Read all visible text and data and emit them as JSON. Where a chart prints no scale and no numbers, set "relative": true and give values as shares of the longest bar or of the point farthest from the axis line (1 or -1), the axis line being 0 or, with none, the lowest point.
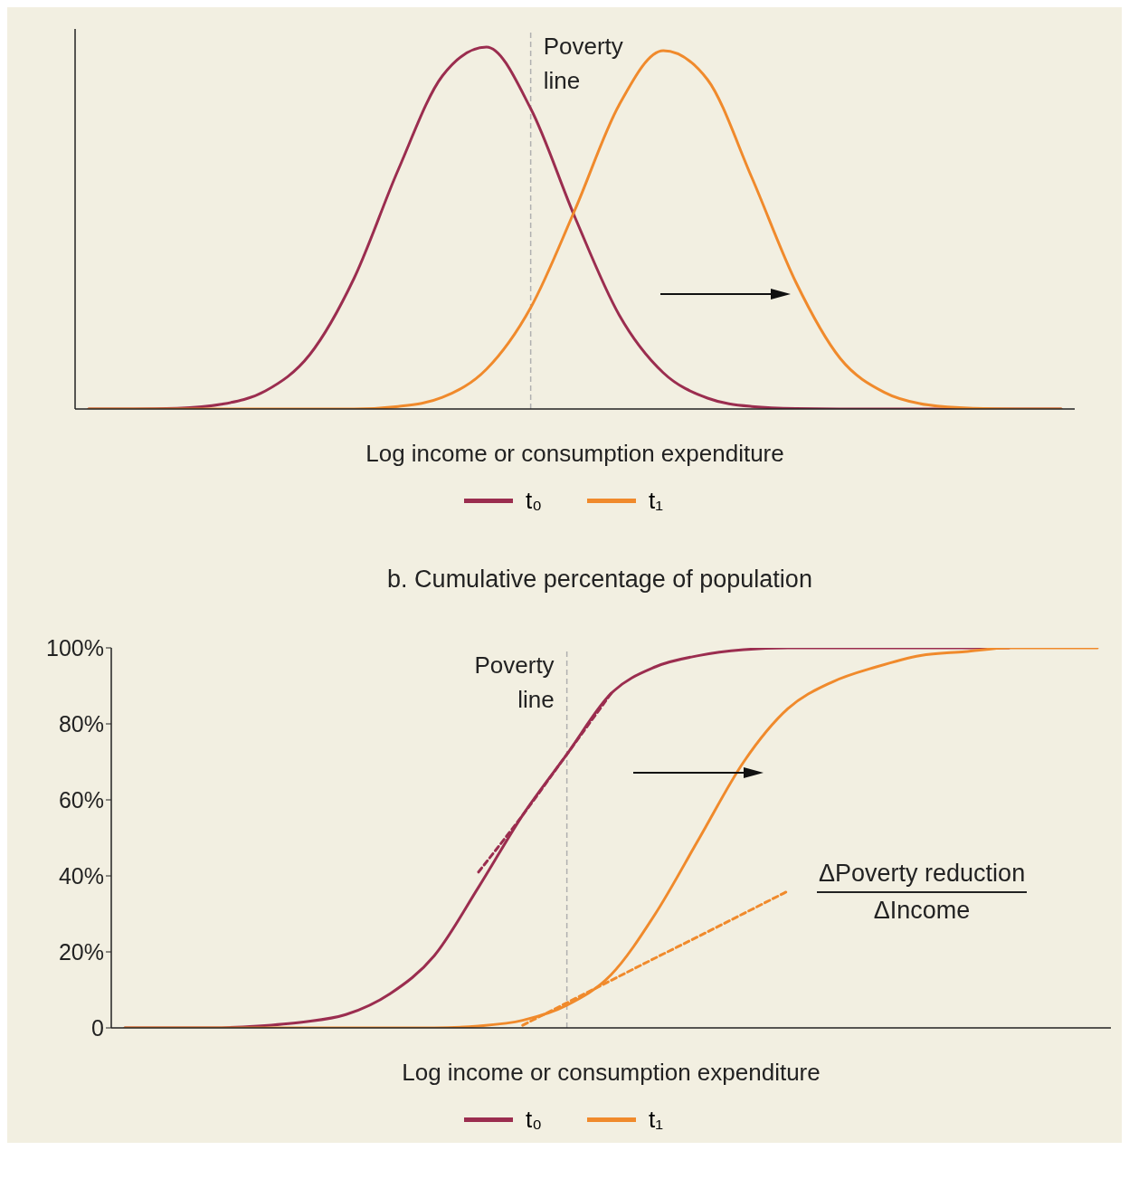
{
  "chart_data": [
    {
      "type": "line",
      "relative": true,
      "tick_labels": false,
      "legend": "bottom",
      "marker": "none",
      "xlabel": "Log income or consumption expenditure",
      "categories": [
        null,
        null,
        null,
        null,
        null,
        null,
        null,
        null,
        null,
        null,
        null,
        null,
        null,
        null,
        null,
        null,
        null,
        null,
        null,
        null,
        null,
        null,
        null
      ],
      "series": [
        {
          "name": "t₀",
          "color": "#9b2d4f",
          "values": [
            0,
            0,
            0.002,
            0.013,
            0.05,
            0.15,
            0.36,
            0.66,
            0.92,
            1,
            0.83,
            0.53,
            0.26,
            0.1,
            0.03,
            0.007,
            0.001,
            0,
            0,
            0,
            0,
            0,
            0
          ]
        },
        {
          "name": "t₁",
          "color": "#f08a2c",
          "values": [
            0,
            0,
            0,
            0,
            0,
            0,
            0,
            0.007,
            0.032,
            0.11,
            0.28,
            0.55,
            0.84,
            0.99,
            0.91,
            0.64,
            0.35,
            0.14,
            0.046,
            0.011,
            0.002,
            0,
            0
          ]
        }
      ],
      "annotations": [
        "Poverty line"
      ]
    },
    {
      "type": "line",
      "title": "b. Cumulative percentage of population",
      "tick_labels": "y",
      "legend": "bottom",
      "marker": "none",
      "xlabel": "Log income or consumption expenditure",
      "ylim": [
        0,
        100
      ],
      "yticks": [
        0,
        {
          "value": 20,
          "label": "20%"
        },
        {
          "value": 40,
          "label": "40%"
        },
        {
          "value": 60,
          "label": "60%"
        },
        {
          "value": 80,
          "label": "80%"
        },
        {
          "value": 100,
          "label": "100%"
        }
      ],
      "categories": [
        null,
        null,
        null,
        null,
        null,
        null,
        null,
        null,
        null,
        null,
        null,
        null,
        null,
        null,
        null,
        null,
        null,
        null,
        null,
        null,
        null,
        null,
        null
      ],
      "series": [
        {
          "name": "t₀",
          "color": "#9b2d4f",
          "values": [
            0,
            0,
            0,
            0.5,
            1.5,
            3.5,
            9,
            19,
            37,
            56,
            72,
            88,
            95,
            98,
            99.5,
            100,
            100,
            100,
            100,
            100,
            100,
            null,
            null
          ]
        },
        {
          "name": "t₁",
          "color": "#f08a2c",
          "values": [
            0,
            0,
            0,
            0,
            0,
            0,
            0,
            0,
            0.5,
            2,
            6,
            14,
            30,
            50,
            70,
            84,
            91,
            95,
            98,
            99,
            100,
            100,
            100
          ]
        },
        {
          "color": "#9b2d4f",
          "line_style": "dashed",
          "values": [
            null,
            null,
            null,
            null,
            null,
            null,
            null,
            null,
            41,
            56,
            72,
            88,
            null,
            null,
            null,
            null,
            null,
            null,
            null,
            null,
            null,
            null,
            null
          ]
        },
        {
          "color": "#f08a2c",
          "line_style": "dashed",
          "values": [
            null,
            null,
            null,
            null,
            null,
            null,
            null,
            null,
            null,
            0.7,
            6.6,
            12.5,
            18.4,
            24.2,
            30.1,
            36,
            null,
            null,
            null,
            null,
            null,
            null,
            null
          ]
        }
      ],
      "annotations": [
        "Poverty line",
        "ΔPoverty reduction",
        "ΔIncome"
      ]
    }
  ]
}
